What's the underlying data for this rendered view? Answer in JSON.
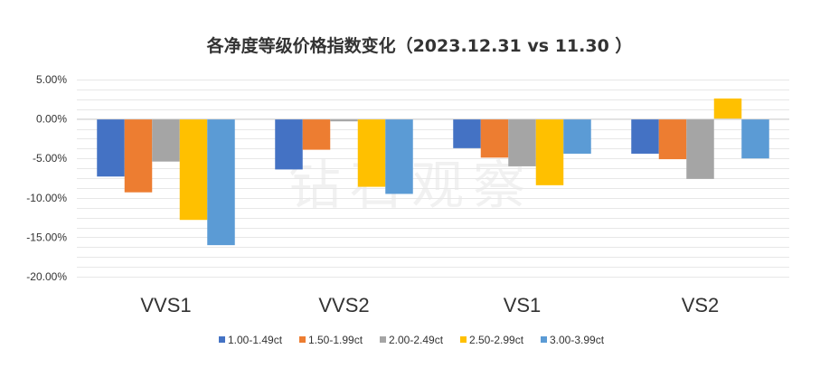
{
  "watermark": "钻石观察",
  "chart_data": {
    "type": "bar",
    "title": "各净度等级价格指数变化（2023.12.31 vs 11.30 ）",
    "categories": [
      "VVS1",
      "VVS2",
      "VS1",
      "VS2"
    ],
    "series": [
      {
        "name": "1.00-1.49ct",
        "color": "#4472C4",
        "values": [
          -7.3,
          -6.4,
          -3.7,
          -4.4
        ]
      },
      {
        "name": "1.50-1.99ct",
        "color": "#ED7D31",
        "values": [
          -9.3,
          -3.9,
          -4.9,
          -5.1
        ]
      },
      {
        "name": "2.00-2.49ct",
        "color": "#A5A5A5",
        "values": [
          -5.4,
          -0.3,
          -6.0,
          -7.6
        ]
      },
      {
        "name": "2.50-2.99ct",
        "color": "#FFC000",
        "values": [
          -12.8,
          -8.6,
          -8.4,
          2.6
        ]
      },
      {
        "name": "3.00-3.99ct",
        "color": "#5B9BD5",
        "values": [
          -16.0,
          -9.5,
          -4.4,
          -5.0
        ]
      }
    ],
    "ylim": [
      -20,
      5
    ],
    "yticks": [
      "5.00%",
      "0.00%",
      "-5.00%",
      "-10.00%",
      "-15.00%",
      "-20.00%"
    ],
    "ytick_values": [
      5,
      0,
      -5,
      -10,
      -15,
      -20
    ],
    "xlabel": "",
    "ylabel": "",
    "grid": true,
    "legend_position": "bottom"
  }
}
